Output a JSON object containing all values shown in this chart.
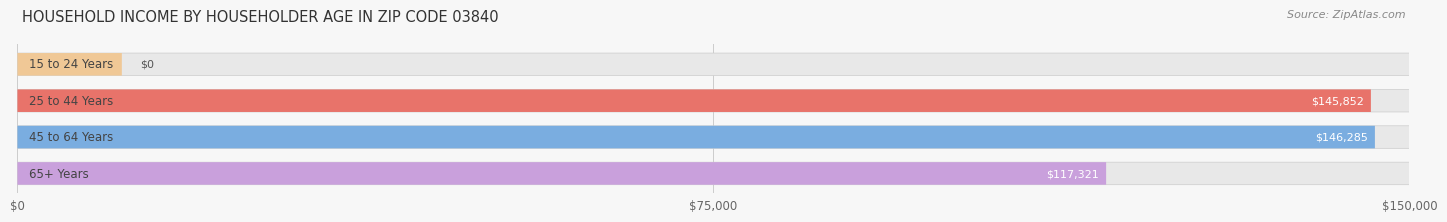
{
  "title": "HOUSEHOLD INCOME BY HOUSEHOLDER AGE IN ZIP CODE 03840",
  "source": "Source: ZipAtlas.com",
  "categories": [
    "15 to 24 Years",
    "25 to 44 Years",
    "45 to 64 Years",
    "65+ Years"
  ],
  "values": [
    0,
    145852,
    146285,
    117321
  ],
  "bar_colors": [
    "#f0c896",
    "#e8736a",
    "#7aade0",
    "#c9a0dc"
  ],
  "bar_bg_color": "#e8e8e8",
  "value_labels": [
    "$0",
    "$145,852",
    "$146,285",
    "$117,321"
  ],
  "x_ticks": [
    0,
    75000,
    150000
  ],
  "x_tick_labels": [
    "$0",
    "$75,000",
    "$150,000"
  ],
  "xlim": [
    0,
    150000
  ],
  "background_color": "#f7f7f7",
  "title_fontsize": 10.5,
  "source_fontsize": 8,
  "label_fontsize": 8.5,
  "value_fontsize": 8.0,
  "tick_fontsize": 8.5,
  "bar_height": 0.62,
  "bar_gap": 1.0
}
